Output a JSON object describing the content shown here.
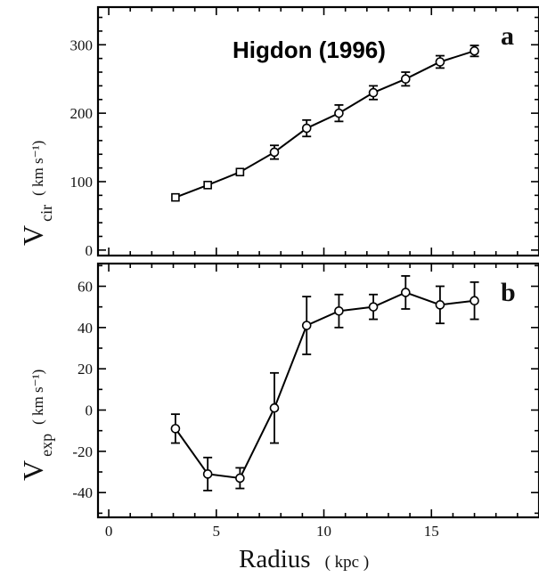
{
  "annotation": "Higdon (1996)",
  "xlabel": {
    "main": "Radius",
    "unit": "( kpc )"
  },
  "chart_data": [
    {
      "type": "line",
      "panel": "a",
      "ylabel": {
        "main": "V",
        "sub": "cir",
        "unit": "( km s⁻¹)"
      },
      "xlim": [
        -0.5,
        20
      ],
      "ylim": [
        -8,
        355
      ],
      "yticks": [
        0,
        100,
        200,
        300
      ],
      "marker": "square-then-circle",
      "x": [
        3.1,
        4.6,
        6.1,
        7.7,
        9.2,
        10.7,
        12.3,
        13.8,
        15.4,
        17.0
      ],
      "y": [
        77,
        95,
        114,
        143,
        178,
        200,
        230,
        250,
        275,
        291
      ],
      "yerr": [
        0,
        0,
        0,
        10,
        12,
        12,
        10,
        10,
        9,
        8
      ]
    },
    {
      "type": "line",
      "panel": "b",
      "ylabel": {
        "main": "V",
        "sub": "exp",
        "unit": "( km s⁻¹)"
      },
      "xlim": [
        -0.5,
        20
      ],
      "ylim": [
        -52,
        71
      ],
      "yticks": [
        -40,
        -20,
        0,
        20,
        40,
        60
      ],
      "xticks": [
        0,
        5,
        10,
        15
      ],
      "marker": "circle",
      "x": [
        3.1,
        4.6,
        6.1,
        7.7,
        9.2,
        10.7,
        12.3,
        13.8,
        15.4,
        17.0
      ],
      "y": [
        -9,
        -31,
        -33,
        1,
        41,
        48,
        50,
        57,
        51,
        53
      ],
      "yerr": [
        7,
        8,
        5,
        17,
        14,
        8,
        6,
        8,
        9,
        9
      ]
    }
  ]
}
